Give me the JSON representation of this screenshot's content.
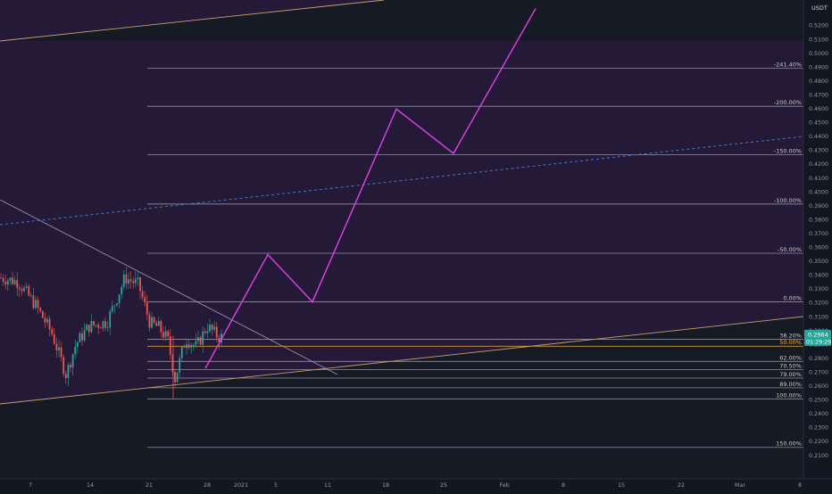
{
  "chart_data": {
    "type": "line",
    "title": "",
    "currency_label": "USDT",
    "y_axis": {
      "min": 0.2,
      "max": 0.53,
      "ticks": [
        "0.5200",
        "0.5100",
        "0.5000",
        "0.4900",
        "0.4800",
        "0.4700",
        "0.4600",
        "0.4500",
        "0.4400",
        "0.4300",
        "0.4200",
        "0.4100",
        "0.4000",
        "0.3900",
        "0.3800",
        "0.3700",
        "0.3600",
        "0.3500",
        "0.3400",
        "0.3300",
        "0.3200",
        "0.3100",
        "0.3000",
        "0.2900",
        "0.2800",
        "0.2700",
        "0.2600",
        "0.2500",
        "0.2400",
        "0.2300",
        "0.2200",
        "0.2100"
      ]
    },
    "x_axis": {
      "tick_labels": [
        "7",
        "14",
        "21",
        "28",
        "2021",
        "5",
        "11",
        "18",
        "25",
        "Feb",
        "8",
        "15",
        "22",
        "Mar",
        "8"
      ]
    },
    "current_price": {
      "value": "0.2964",
      "countdown": "01:29:29",
      "color": "#26a69a"
    },
    "fib_levels": [
      {
        "label": "-241.40%",
        "price": 0.489
      },
      {
        "label": "-200.00%",
        "price": 0.4615
      },
      {
        "label": "-150.00%",
        "price": 0.4265
      },
      {
        "label": "-100.00%",
        "price": 0.391
      },
      {
        "label": "-50.00%",
        "price": 0.3555
      },
      {
        "label": "0.00%",
        "price": 0.3205
      },
      {
        "label": "38.20%",
        "price": 0.2935
      },
      {
        "label": "50.00%",
        "price": 0.2885
      },
      {
        "label": "62.00%",
        "price": 0.2775
      },
      {
        "label": "70.50%",
        "price": 0.2715
      },
      {
        "label": "79.00%",
        "price": 0.2655
      },
      {
        "label": "89.00%",
        "price": 0.2585
      },
      {
        "label": "100.00%",
        "price": 0.2505
      },
      {
        "label": "150.00%",
        "price": 0.2155
      }
    ],
    "projection_path": [
      {
        "date": "Dec 28",
        "price": 0.2725
      },
      {
        "date": "Jan 5",
        "price": 0.3545
      },
      {
        "date": "Jan 10",
        "price": 0.3205
      },
      {
        "date": "Jan 19",
        "price": 0.4595
      },
      {
        "date": "Jan 26",
        "price": 0.4275
      },
      {
        "date": "Feb 6",
        "price": 0.532
      }
    ],
    "trendlines": [
      {
        "name": "upper-channel",
        "color": "#c8a070"
      },
      {
        "name": "lower-channel",
        "color": "#c8a070"
      },
      {
        "name": "mid-channel-dashed",
        "color": "#4a7ee0"
      },
      {
        "name": "descending-resistance",
        "color": "#9a90a8"
      }
    ],
    "colors": {
      "background": "#161a25",
      "channel_fill": "#241a37",
      "fib_line": "#b8b8c4",
      "fib_50": "#f0b030",
      "projection": "#e040e8",
      "candle_up": "#26a69a",
      "candle_down": "#ef5350"
    }
  }
}
